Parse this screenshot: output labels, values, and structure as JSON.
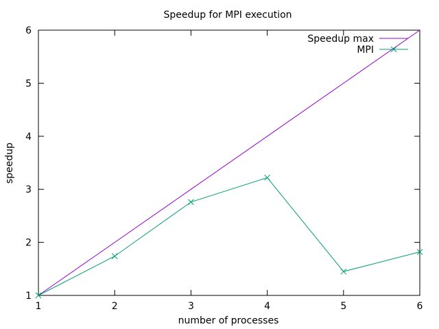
{
  "chart_data": {
    "type": "line",
    "title": "Speedup for MPI execution",
    "xlabel": "number of processes",
    "ylabel": "speedup",
    "xlim": [
      1,
      6
    ],
    "ylim": [
      1,
      6
    ],
    "xticks": [
      1,
      2,
      3,
      4,
      5,
      6
    ],
    "yticks": [
      1,
      2,
      3,
      4,
      5,
      6
    ],
    "grid": false,
    "legend_position": "top-right",
    "series": [
      {
        "name": "Speedup max",
        "color": "#9400d3",
        "marker": "none",
        "x": [
          1,
          2,
          3,
          4,
          5,
          6
        ],
        "y": [
          1,
          2,
          3,
          4,
          5,
          6
        ]
      },
      {
        "name": "MPI",
        "color": "#009e73",
        "marker": "x",
        "x": [
          1,
          2,
          3,
          4,
          5,
          6
        ],
        "y": [
          1.0,
          1.74,
          2.76,
          3.22,
          1.45,
          1.82
        ]
      }
    ]
  }
}
